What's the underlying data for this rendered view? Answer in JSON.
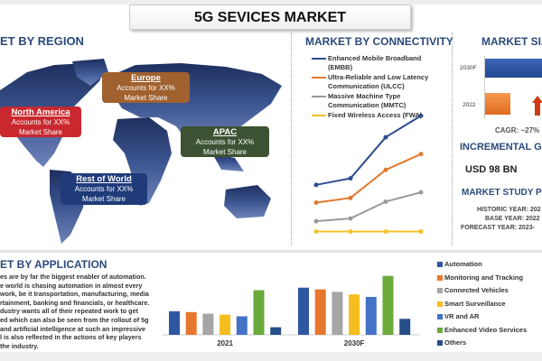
{
  "title": "5G SEVICES MARKET",
  "region": {
    "heading": "ET BY REGION",
    "boxes": [
      {
        "name": "Europe",
        "text1": "Accounts for XX%",
        "text2": "Market Share",
        "color": "#a0612f"
      },
      {
        "name": "North America",
        "text1": "Accounts for XX%",
        "text2": "Market Share",
        "color": "#c8282e"
      },
      {
        "name": "APAC",
        "text1": "Accounts for XX%",
        "text2": "Market Share",
        "color": "#3d5233"
      },
      {
        "name": "Rest of World",
        "text1": "Accounts for XX%",
        "text2": "Market Share",
        "color": "#1f3b7a"
      }
    ]
  },
  "connectivity": {
    "heading": "MARKET BY CONNECTIVITY",
    "legend": [
      {
        "line1": "Enhanced Mobile Broadband",
        "line2": "(EMBB)",
        "color": "#2f4d8f"
      },
      {
        "line1": "Ultra-Reliable and Low Latency",
        "line2": "Communication (ULCC)",
        "color": "#e0792f"
      },
      {
        "line1": "Massive Machine Type",
        "line2": "Communication (MMTC)",
        "color": "#9a9a9a"
      },
      {
        "line1": "Fixed Wireless Access (FWA)",
        "line2": "",
        "color": "#f2c12e"
      }
    ]
  },
  "size": {
    "heading": "MARKET SIZI",
    "bar_labels": [
      "2030F",
      "2022"
    ],
    "colors": {
      "2030F": "#2f56a8",
      "2022": "#f08030",
      "arrow": "#d03a10"
    },
    "cagr": "CAGR: ~27%",
    "incremental_heading": "INCREMENTAL GRO",
    "incremental_value": "USD 98 BN",
    "study_heading": "MARKET STUDY PE",
    "historic": "HISTORIC YEAR: 202",
    "base": "BASE YEAR: 2022",
    "forecast": "FORECAST YEAR: 2023-"
  },
  "application": {
    "heading": "ET BY APPLICATION",
    "paragraph": [
      "es are by far the biggest enabler of automation.",
      "e world is chasing automation in almost every",
      "work, be it transportation, manufacturing, media",
      "rtainment, banking and financials, or healthcare.",
      "dustry wants all of their repeated work to get",
      "ed which can also be seen from the rollout of 5g",
      "and artificial intelligence at such an impressive",
      "l is also reflected in the actions of key players",
      "the industry."
    ]
  },
  "chart_data": [
    {
      "type": "line",
      "title": "MARKET BY CONNECTIVITY",
      "x": [
        1,
        2,
        3,
        4
      ],
      "series": [
        {
          "name": "Enhanced Mobile Broadband (EMBB)",
          "values": [
            63,
            70,
            114,
            137
          ],
          "color": "#2f4d8f"
        },
        {
          "name": "Ultra-Reliable and Low Latency Communication (ULCC)",
          "values": [
            44,
            49,
            79,
            96
          ],
          "color": "#e0792f"
        },
        {
          "name": "Massive Machine Type Communication (MMTC)",
          "values": [
            24,
            27,
            45,
            55
          ],
          "color": "#9a9a9a"
        },
        {
          "name": "Fixed Wireless Access (FWA)",
          "values": [
            13,
            13,
            13,
            13
          ],
          "color": "#f2c12e"
        }
      ],
      "ylim": [
        0,
        145
      ],
      "grid": false,
      "legend": "top"
    },
    {
      "type": "bar",
      "orientation": "horizontal",
      "categories": [
        "2030F",
        "2022"
      ],
      "values": [
        100,
        45
      ]
    },
    {
      "type": "bar",
      "categories": [
        "2021",
        "2030F"
      ],
      "series": [
        {
          "name": "Automation",
          "values": [
            28,
            56
          ],
          "color": "#2f56a0"
        },
        {
          "name": "Monitoring and Tracking",
          "values": [
            27,
            54
          ],
          "color": "#e8772e"
        },
        {
          "name": "Connected Vehicles",
          "values": [
            25,
            51
          ],
          "color": "#a5a5a5"
        },
        {
          "name": "Smart Surveillance",
          "values": [
            24,
            48
          ],
          "color": "#f5bd1f"
        },
        {
          "name": "VR and AR",
          "values": [
            22,
            45
          ],
          "color": "#4472c4"
        },
        {
          "name": "Enhanced Video Services",
          "values": [
            53,
            70
          ],
          "color": "#6aab3c"
        },
        {
          "name": "Others",
          "values": [
            9,
            19
          ],
          "color": "#264f8a"
        }
      ],
      "ylim": [
        0,
        75
      ],
      "grid": false,
      "legend": "right"
    }
  ]
}
